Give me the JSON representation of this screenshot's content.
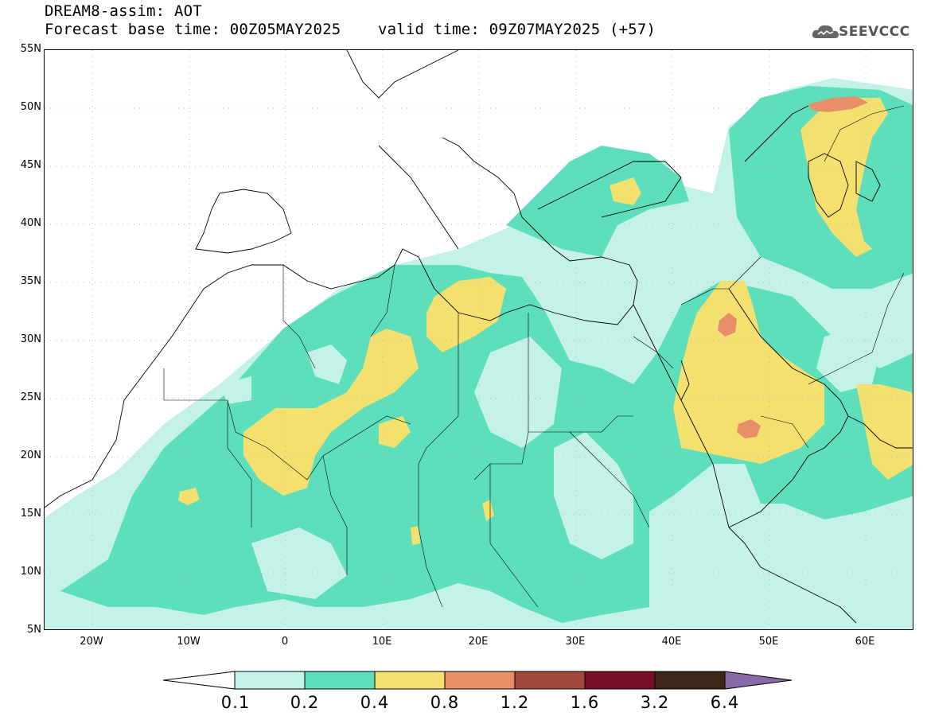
{
  "header": {
    "title_line1": "DREAM8-assim: AOT",
    "title_line2": "Forecast base time: 00Z05MAY2025    valid time: 09Z07MAY2025 (+57)"
  },
  "logo": {
    "text": "SEEVCCC",
    "icon": "cloud-icon"
  },
  "map": {
    "lat_labels": [
      "55N",
      "50N",
      "45N",
      "40N",
      "35N",
      "30N",
      "25N",
      "20N",
      "15N",
      "10N",
      "5N"
    ],
    "lon_labels": [
      "20W",
      "10W",
      "0",
      "10E",
      "20E",
      "30E",
      "40E",
      "50E",
      "60E"
    ],
    "lat_range": [
      5,
      55
    ],
    "lon_range": [
      -25,
      65
    ],
    "grid": true
  },
  "colorbar": {
    "levels": [
      "0.1",
      "0.2",
      "0.4",
      "0.8",
      "1.2",
      "1.6",
      "3.2",
      "6.4"
    ],
    "colors": [
      "#ffffff",
      "#c4f2e8",
      "#5ddfbb",
      "#f4e06e",
      "#e88e68",
      "#a3493a",
      "#7a0f2a",
      "#3e2718",
      "#8a6aa6"
    ]
  }
}
